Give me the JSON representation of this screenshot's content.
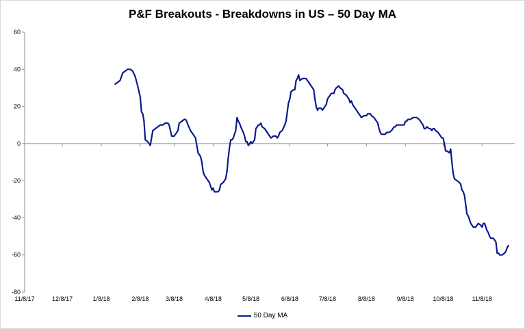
{
  "chart_data": {
    "type": "line",
    "title": "P&F Breakouts - Breakdowns in US – 50 Day MA",
    "xlabel": "",
    "ylabel": "",
    "ylim": [
      -80,
      60
    ],
    "yticks": [
      60,
      40,
      20,
      0,
      -20,
      -40,
      -60,
      -80
    ],
    "ytick_labels": [
      "60",
      "40",
      "20",
      "0",
      "-20",
      "-40",
      "-60",
      "-80"
    ],
    "x_range": [
      0,
      390
    ],
    "xticks": [
      0,
      30,
      61,
      92,
      119,
      150,
      180,
      211,
      241,
      272,
      303,
      333,
      364
    ],
    "xtick_labels": [
      "11/8/17",
      "12/8/17",
      "1/8/18",
      "2/8/18",
      "3/8/18",
      "4/8/18",
      "5/8/18",
      "6/8/18",
      "7/8/18",
      "8/8/18",
      "9/8/18",
      "10/8/18",
      "11/8/18"
    ],
    "grid": false,
    "legend_position": "bottom",
    "line_color": "#0a1a8c",
    "series": [
      {
        "name": "50 Day MA",
        "points": [
          [
            72,
            32
          ],
          [
            74,
            33
          ],
          [
            76,
            34
          ],
          [
            77,
            36
          ],
          [
            78,
            38
          ],
          [
            80,
            39
          ],
          [
            82,
            40
          ],
          [
            84,
            40
          ],
          [
            86,
            39
          ],
          [
            88,
            36
          ],
          [
            90,
            31
          ],
          [
            92,
            25
          ],
          [
            93,
            17
          ],
          [
            94,
            16
          ],
          [
            95,
            12
          ],
          [
            96,
            2
          ],
          [
            98,
            1
          ],
          [
            99,
            0
          ],
          [
            100,
            -1
          ],
          [
            101,
            3
          ],
          [
            102,
            7
          ],
          [
            104,
            8
          ],
          [
            106,
            9
          ],
          [
            108,
            10
          ],
          [
            110,
            10
          ],
          [
            112,
            11
          ],
          [
            114,
            11
          ],
          [
            115,
            10
          ],
          [
            116,
            7
          ],
          [
            117,
            4
          ],
          [
            119,
            4
          ],
          [
            120,
            5
          ],
          [
            121,
            6
          ],
          [
            122,
            7
          ],
          [
            123,
            11
          ],
          [
            125,
            12
          ],
          [
            127,
            13
          ],
          [
            128,
            13
          ],
          [
            129,
            12
          ],
          [
            130,
            10
          ],
          [
            132,
            7
          ],
          [
            134,
            5
          ],
          [
            136,
            3
          ],
          [
            137,
            -1
          ],
          [
            138,
            -5
          ],
          [
            140,
            -7
          ],
          [
            141,
            -10
          ],
          [
            142,
            -15
          ],
          [
            143,
            -17
          ],
          [
            145,
            -19
          ],
          [
            147,
            -21
          ],
          [
            148,
            -23
          ],
          [
            149,
            -25
          ],
          [
            150,
            -24
          ],
          [
            151,
            -26
          ],
          [
            153,
            -26
          ],
          [
            154,
            -26
          ],
          [
            155,
            -25
          ],
          [
            156,
            -22
          ],
          [
            158,
            -21
          ],
          [
            160,
            -19
          ],
          [
            161,
            -15
          ],
          [
            162,
            -8
          ],
          [
            163,
            -2
          ],
          [
            164,
            2
          ],
          [
            165,
            2
          ],
          [
            166,
            3
          ],
          [
            167,
            5
          ],
          [
            168,
            7
          ],
          [
            169,
            14
          ],
          [
            170,
            12
          ],
          [
            171,
            11
          ],
          [
            172,
            9
          ],
          [
            174,
            6
          ],
          [
            175,
            4
          ],
          [
            176,
            1
          ],
          [
            177,
            1
          ],
          [
            178,
            -1
          ],
          [
            179,
            0
          ],
          [
            180,
            1
          ],
          [
            181,
            0
          ],
          [
            182,
            1
          ],
          [
            183,
            2
          ],
          [
            184,
            8
          ],
          [
            186,
            10
          ],
          [
            187,
            10
          ],
          [
            188,
            11
          ],
          [
            189,
            9
          ],
          [
            191,
            8
          ],
          [
            192,
            7
          ],
          [
            194,
            5
          ],
          [
            195,
            4
          ],
          [
            196,
            3
          ],
          [
            198,
            4
          ],
          [
            200,
            4
          ],
          [
            201,
            3
          ],
          [
            202,
            4
          ],
          [
            203,
            6
          ],
          [
            205,
            7
          ],
          [
            207,
            10
          ],
          [
            208,
            12
          ],
          [
            209,
            17
          ],
          [
            210,
            22
          ],
          [
            211,
            24
          ],
          [
            212,
            28
          ],
          [
            214,
            29
          ],
          [
            215,
            29
          ],
          [
            216,
            34
          ],
          [
            217,
            35
          ],
          [
            218,
            37
          ],
          [
            219,
            34
          ],
          [
            221,
            35
          ],
          [
            222,
            35
          ],
          [
            224,
            35
          ],
          [
            226,
            33
          ],
          [
            228,
            31
          ],
          [
            230,
            29
          ],
          [
            231,
            24
          ],
          [
            232,
            20
          ],
          [
            233,
            18
          ],
          [
            234,
            19
          ],
          [
            236,
            19
          ],
          [
            237,
            18
          ],
          [
            239,
            20
          ],
          [
            240,
            21
          ],
          [
            241,
            24
          ],
          [
            242,
            25
          ],
          [
            243,
            26
          ],
          [
            244,
            27
          ],
          [
            246,
            27
          ],
          [
            247,
            29
          ],
          [
            248,
            30
          ],
          [
            250,
            31
          ],
          [
            251,
            30
          ],
          [
            253,
            29
          ],
          [
            254,
            27
          ],
          [
            256,
            26
          ],
          [
            257,
            25
          ],
          [
            258,
            24
          ],
          [
            259,
            22
          ],
          [
            260,
            23
          ],
          [
            261,
            21
          ],
          [
            262,
            20
          ],
          [
            264,
            18
          ],
          [
            266,
            16
          ],
          [
            267,
            15
          ],
          [
            268,
            14
          ],
          [
            270,
            15
          ],
          [
            272,
            15
          ],
          [
            273,
            16
          ],
          [
            274,
            16
          ],
          [
            275,
            16
          ],
          [
            276,
            15
          ],
          [
            278,
            14
          ],
          [
            279,
            13
          ],
          [
            280,
            12
          ],
          [
            281,
            11
          ],
          [
            282,
            8
          ],
          [
            283,
            6
          ],
          [
            284,
            5
          ],
          [
            286,
            5
          ],
          [
            287,
            5
          ],
          [
            288,
            6
          ],
          [
            289,
            6
          ],
          [
            290,
            6
          ],
          [
            292,
            7
          ],
          [
            293,
            8
          ],
          [
            294,
            9
          ],
          [
            295,
            9
          ],
          [
            296,
            10
          ],
          [
            297,
            10
          ],
          [
            298,
            10
          ],
          [
            299,
            10
          ],
          [
            300,
            10
          ],
          [
            302,
            10
          ],
          [
            303,
            12
          ],
          [
            304,
            12
          ],
          [
            305,
            13
          ],
          [
            306,
            13
          ],
          [
            307,
            13
          ],
          [
            309,
            14
          ],
          [
            311,
            14
          ],
          [
            312,
            14
          ],
          [
            314,
            13
          ],
          [
            316,
            11
          ],
          [
            317,
            10
          ],
          [
            318,
            8
          ],
          [
            319,
            8
          ],
          [
            320,
            9
          ],
          [
            322,
            8
          ],
          [
            323,
            8
          ],
          [
            324,
            7
          ],
          [
            325,
            8
          ],
          [
            326,
            8
          ],
          [
            327,
            7
          ],
          [
            329,
            6
          ],
          [
            330,
            5
          ],
          [
            331,
            4
          ],
          [
            332,
            3
          ],
          [
            333,
            3
          ],
          [
            334,
            0
          ],
          [
            335,
            -4
          ],
          [
            336,
            -4
          ],
          [
            338,
            -5
          ],
          [
            339,
            -3
          ],
          [
            340,
            -10
          ],
          [
            341,
            -16
          ],
          [
            342,
            -19
          ],
          [
            344,
            -20
          ],
          [
            346,
            -21
          ],
          [
            347,
            -22
          ],
          [
            348,
            -25
          ],
          [
            349,
            -26
          ],
          [
            350,
            -28
          ],
          [
            351,
            -33
          ],
          [
            352,
            -38
          ],
          [
            353,
            -39
          ],
          [
            354,
            -41
          ],
          [
            355,
            -43
          ],
          [
            356,
            -44
          ],
          [
            357,
            -45
          ],
          [
            358,
            -45
          ],
          [
            359,
            -45
          ],
          [
            360,
            -44
          ],
          [
            361,
            -43
          ],
          [
            363,
            -44
          ],
          [
            364,
            -45
          ],
          [
            365,
            -43
          ],
          [
            366,
            -43
          ],
          [
            367,
            -45
          ],
          [
            368,
            -47
          ],
          [
            369,
            -48
          ],
          [
            370,
            -50
          ],
          [
            371,
            -51
          ],
          [
            372,
            -51
          ],
          [
            373,
            -51
          ],
          [
            374,
            -52
          ],
          [
            375,
            -53
          ],
          [
            376,
            -59
          ],
          [
            377,
            -59
          ],
          [
            378,
            -60
          ],
          [
            379,
            -60
          ],
          [
            380,
            -60
          ],
          [
            382,
            -59
          ],
          [
            383,
            -58
          ],
          [
            384,
            -56
          ],
          [
            385,
            -55
          ]
        ]
      }
    ]
  }
}
